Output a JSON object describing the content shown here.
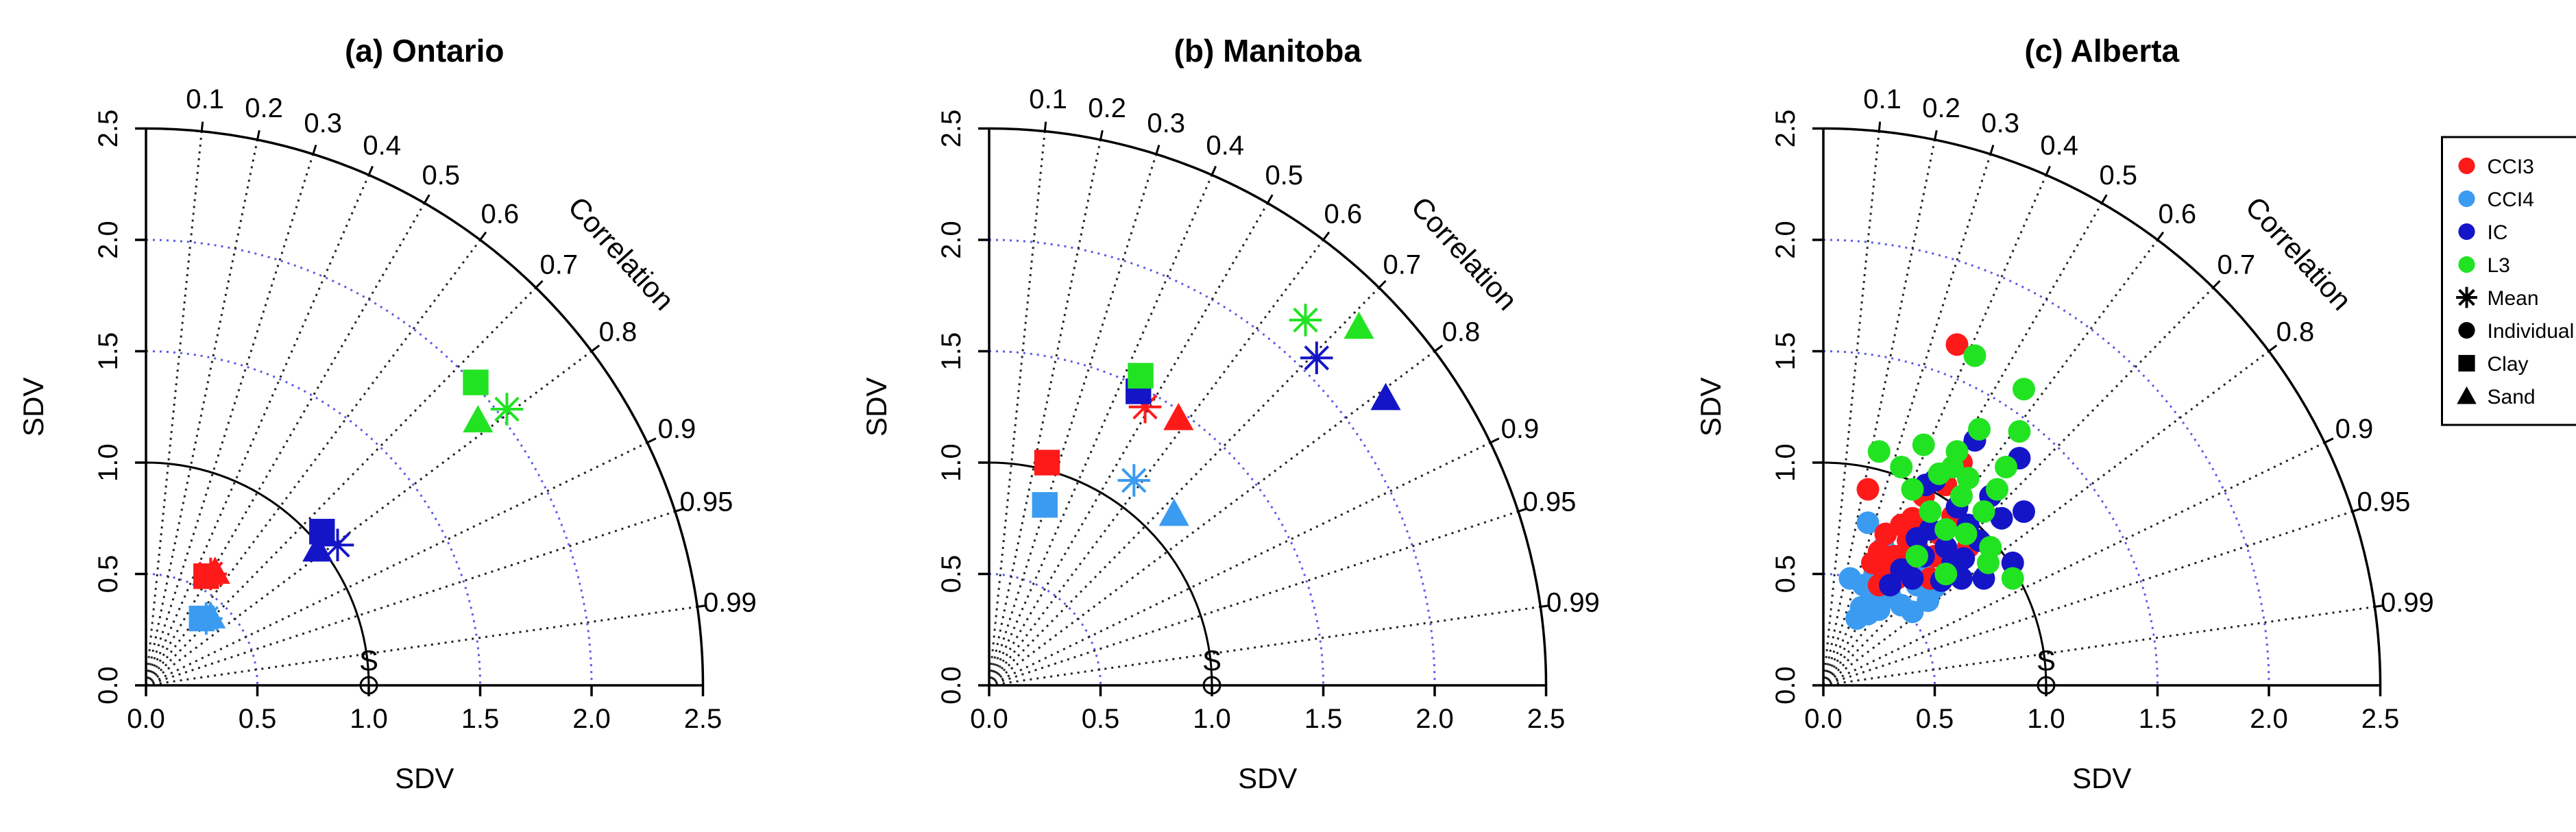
{
  "figure": {
    "background": "#ffffff",
    "colors": {
      "CCI3": "#ff1a1a",
      "CCI4": "#3b9bf0",
      "IC": "#1515c8",
      "L3": "#22e322",
      "grid_sd": "#5a5ae6",
      "grid_cor": "#222222"
    }
  },
  "chart_data": [
    {
      "type": "scatter",
      "subtype": "taylor-diagram",
      "title": "(a) Ontario",
      "xlabel": "SDV",
      "ylabel": "SDV",
      "correlation_label": "Correlation",
      "ref_label": "S",
      "sd_range": [
        0,
        2.5
      ],
      "sd_ticks": [
        "0.0",
        "0.5",
        "1.0",
        "1.5",
        "2.0",
        "2.5"
      ],
      "sd_tick_values": [
        0,
        0.5,
        1.0,
        1.5,
        2.0,
        2.5
      ],
      "cor_ticks": [
        "0.1",
        "0.2",
        "0.3",
        "0.4",
        "0.5",
        "0.6",
        "0.7",
        "0.8",
        "0.9",
        "0.95",
        "0.99"
      ],
      "cor_tick_values": [
        0.1,
        0.2,
        0.3,
        0.4,
        0.5,
        0.6,
        0.7,
        0.8,
        0.9,
        0.95,
        0.99
      ],
      "sd_grid": [
        0.5,
        1.5,
        2.0
      ],
      "ref_sd": 1.0,
      "series": [
        {
          "product": "CCI3",
          "marker": "square",
          "points": [
            {
              "x": 0.27,
              "y": 0.49
            }
          ]
        },
        {
          "product": "CCI3",
          "marker": "triangle",
          "points": [
            {
              "x": 0.31,
              "y": 0.51
            }
          ]
        },
        {
          "product": "CCI3",
          "marker": "asterisk",
          "points": [
            {
              "x": 0.29,
              "y": 0.5
            }
          ]
        },
        {
          "product": "CCI4",
          "marker": "square",
          "points": [
            {
              "x": 0.25,
              "y": 0.3
            }
          ]
        },
        {
          "product": "CCI4",
          "marker": "triangle",
          "points": [
            {
              "x": 0.29,
              "y": 0.31
            }
          ]
        },
        {
          "product": "CCI4",
          "marker": "asterisk",
          "points": [
            {
              "x": 0.27,
              "y": 0.3
            }
          ]
        },
        {
          "product": "IC",
          "marker": "square",
          "points": [
            {
              "x": 0.79,
              "y": 0.69
            }
          ]
        },
        {
          "product": "IC",
          "marker": "triangle",
          "points": [
            {
              "x": 0.77,
              "y": 0.61
            }
          ]
        },
        {
          "product": "IC",
          "marker": "asterisk",
          "points": [
            {
              "x": 0.86,
              "y": 0.63
            }
          ]
        },
        {
          "product": "L3",
          "marker": "square",
          "points": [
            {
              "x": 1.48,
              "y": 1.36
            }
          ]
        },
        {
          "product": "L3",
          "marker": "triangle",
          "points": [
            {
              "x": 1.49,
              "y": 1.19
            }
          ]
        },
        {
          "product": "L3",
          "marker": "asterisk",
          "points": [
            {
              "x": 1.62,
              "y": 1.24
            }
          ]
        }
      ]
    },
    {
      "type": "scatter",
      "subtype": "taylor-diagram",
      "title": "(b) Manitoba",
      "xlabel": "SDV",
      "ylabel": "SDV",
      "correlation_label": "Correlation",
      "ref_label": "S",
      "sd_range": [
        0,
        2.5
      ],
      "sd_ticks": [
        "0.0",
        "0.5",
        "1.0",
        "1.5",
        "2.0",
        "2.5"
      ],
      "sd_tick_values": [
        0,
        0.5,
        1.0,
        1.5,
        2.0,
        2.5
      ],
      "cor_ticks": [
        "0.1",
        "0.2",
        "0.3",
        "0.4",
        "0.5",
        "0.6",
        "0.7",
        "0.8",
        "0.9",
        "0.95",
        "0.99"
      ],
      "cor_tick_values": [
        0.1,
        0.2,
        0.3,
        0.4,
        0.5,
        0.6,
        0.7,
        0.8,
        0.9,
        0.95,
        0.99
      ],
      "sd_grid": [
        0.5,
        1.5,
        2.0
      ],
      "ref_sd": 1.0,
      "series": [
        {
          "product": "CCI3",
          "marker": "square",
          "points": [
            {
              "x": 0.26,
              "y": 1.0
            }
          ]
        },
        {
          "product": "CCI3",
          "marker": "triangle",
          "points": [
            {
              "x": 0.85,
              "y": 1.2
            }
          ]
        },
        {
          "product": "CCI3",
          "marker": "asterisk",
          "points": [
            {
              "x": 0.7,
              "y": 1.25
            }
          ]
        },
        {
          "product": "CCI4",
          "marker": "square",
          "points": [
            {
              "x": 0.25,
              "y": 0.81
            }
          ]
        },
        {
          "product": "CCI4",
          "marker": "triangle",
          "points": [
            {
              "x": 0.83,
              "y": 0.77
            }
          ]
        },
        {
          "product": "CCI4",
          "marker": "asterisk",
          "points": [
            {
              "x": 0.65,
              "y": 0.92
            }
          ]
        },
        {
          "product": "IC",
          "marker": "square",
          "points": [
            {
              "x": 0.67,
              "y": 1.32
            }
          ]
        },
        {
          "product": "IC",
          "marker": "triangle",
          "points": [
            {
              "x": 1.78,
              "y": 1.29
            }
          ]
        },
        {
          "product": "IC",
          "marker": "asterisk",
          "points": [
            {
              "x": 1.47,
              "y": 1.47
            }
          ]
        },
        {
          "product": "L3",
          "marker": "square",
          "points": [
            {
              "x": 0.68,
              "y": 1.39
            }
          ]
        },
        {
          "product": "L3",
          "marker": "triangle",
          "points": [
            {
              "x": 1.66,
              "y": 1.61
            }
          ]
        },
        {
          "product": "L3",
          "marker": "asterisk",
          "points": [
            {
              "x": 1.42,
              "y": 1.64
            }
          ]
        }
      ]
    },
    {
      "type": "scatter",
      "subtype": "taylor-diagram",
      "title": "(c) Alberta",
      "xlabel": "SDV",
      "ylabel": "SDV",
      "correlation_label": "Correlation",
      "ref_label": "S",
      "sd_range": [
        0,
        2.5
      ],
      "sd_ticks": [
        "0.0",
        "0.5",
        "1.0",
        "1.5",
        "2.0",
        "2.5"
      ],
      "sd_tick_values": [
        0,
        0.5,
        1.0,
        1.5,
        2.0,
        2.5
      ],
      "cor_ticks": [
        "0.1",
        "0.2",
        "0.3",
        "0.4",
        "0.5",
        "0.6",
        "0.7",
        "0.8",
        "0.9",
        "0.95",
        "0.99"
      ],
      "cor_tick_values": [
        0.1,
        0.2,
        0.3,
        0.4,
        0.5,
        0.6,
        0.7,
        0.8,
        0.9,
        0.95,
        0.99
      ],
      "sd_grid": [
        0.5,
        1.5,
        2.0
      ],
      "ref_sd": 1.0,
      "legend": {
        "placement": "top-right",
        "entries": [
          {
            "label": "CCI3",
            "marker": "circle",
            "product": "CCI3"
          },
          {
            "label": "CCI4",
            "marker": "circle",
            "product": "CCI4"
          },
          {
            "label": "IC",
            "marker": "circle",
            "product": "IC"
          },
          {
            "label": "L3",
            "marker": "circle",
            "product": "L3"
          },
          {
            "label": "Mean",
            "marker": "asterisk",
            "product": ""
          },
          {
            "label": "Individual",
            "marker": "circle",
            "product": ""
          },
          {
            "label": "Clay",
            "marker": "square",
            "product": ""
          },
          {
            "label": "Sand",
            "marker": "triangle",
            "product": ""
          }
        ]
      },
      "series": [
        {
          "product": "CCI4",
          "marker": "circle",
          "points": [
            {
              "x": 0.17,
              "y": 0.35
            },
            {
              "x": 0.2,
              "y": 0.32
            },
            {
              "x": 0.22,
              "y": 0.38
            },
            {
              "x": 0.25,
              "y": 0.34
            },
            {
              "x": 0.18,
              "y": 0.45
            },
            {
              "x": 0.23,
              "y": 0.5
            },
            {
              "x": 0.28,
              "y": 0.47
            },
            {
              "x": 0.3,
              "y": 0.4
            },
            {
              "x": 0.35,
              "y": 0.36
            },
            {
              "x": 0.4,
              "y": 0.33
            },
            {
              "x": 0.42,
              "y": 0.45
            },
            {
              "x": 0.33,
              "y": 0.55
            },
            {
              "x": 0.38,
              "y": 0.6
            },
            {
              "x": 0.45,
              "y": 0.52
            },
            {
              "x": 0.5,
              "y": 0.44
            },
            {
              "x": 0.12,
              "y": 0.48
            },
            {
              "x": 0.2,
              "y": 0.73
            },
            {
              "x": 0.27,
              "y": 0.62
            },
            {
              "x": 0.47,
              "y": 0.38
            },
            {
              "x": 0.15,
              "y": 0.3
            }
          ]
        },
        {
          "product": "CCI3",
          "marker": "circle",
          "points": [
            {
              "x": 0.2,
              "y": 0.88
            },
            {
              "x": 0.22,
              "y": 0.55
            },
            {
              "x": 0.25,
              "y": 0.6
            },
            {
              "x": 0.28,
              "y": 0.68
            },
            {
              "x": 0.3,
              "y": 0.5
            },
            {
              "x": 0.32,
              "y": 0.58
            },
            {
              "x": 0.35,
              "y": 0.72
            },
            {
              "x": 0.38,
              "y": 0.65
            },
            {
              "x": 0.4,
              "y": 0.75
            },
            {
              "x": 0.42,
              "y": 0.62
            },
            {
              "x": 0.45,
              "y": 0.85
            },
            {
              "x": 0.5,
              "y": 0.58
            },
            {
              "x": 0.52,
              "y": 0.68
            },
            {
              "x": 0.55,
              "y": 0.9
            },
            {
              "x": 0.58,
              "y": 0.76
            },
            {
              "x": 0.6,
              "y": 1.53
            },
            {
              "x": 0.62,
              "y": 1.0
            },
            {
              "x": 0.65,
              "y": 0.62
            },
            {
              "x": 0.48,
              "y": 0.48
            },
            {
              "x": 0.25,
              "y": 0.45
            },
            {
              "x": 0.33,
              "y": 0.48
            },
            {
              "x": 0.27,
              "y": 0.52
            },
            {
              "x": 0.38,
              "y": 0.55
            },
            {
              "x": 0.57,
              "y": 0.52
            }
          ]
        },
        {
          "product": "IC",
          "marker": "circle",
          "points": [
            {
              "x": 0.3,
              "y": 0.45
            },
            {
              "x": 0.35,
              "y": 0.52
            },
            {
              "x": 0.4,
              "y": 0.48
            },
            {
              "x": 0.45,
              "y": 0.58
            },
            {
              "x": 0.48,
              "y": 0.7
            },
            {
              "x": 0.5,
              "y": 0.92
            },
            {
              "x": 0.55,
              "y": 0.62
            },
            {
              "x": 0.58,
              "y": 0.55
            },
            {
              "x": 0.6,
              "y": 0.8
            },
            {
              "x": 0.62,
              "y": 0.48
            },
            {
              "x": 0.65,
              "y": 0.72
            },
            {
              "x": 0.68,
              "y": 1.1
            },
            {
              "x": 0.7,
              "y": 0.65
            },
            {
              "x": 0.72,
              "y": 0.48
            },
            {
              "x": 0.75,
              "y": 0.85
            },
            {
              "x": 0.8,
              "y": 0.75
            },
            {
              "x": 0.85,
              "y": 0.55
            },
            {
              "x": 0.9,
              "y": 0.78
            },
            {
              "x": 0.42,
              "y": 0.66
            },
            {
              "x": 0.53,
              "y": 0.47
            },
            {
              "x": 0.88,
              "y": 1.02
            },
            {
              "x": 0.46,
              "y": 0.9
            },
            {
              "x": 0.63,
              "y": 0.57
            }
          ]
        },
        {
          "product": "L3",
          "marker": "circle",
          "points": [
            {
              "x": 0.25,
              "y": 1.05
            },
            {
              "x": 0.35,
              "y": 0.98
            },
            {
              "x": 0.4,
              "y": 0.88
            },
            {
              "x": 0.45,
              "y": 1.08
            },
            {
              "x": 0.48,
              "y": 0.78
            },
            {
              "x": 0.52,
              "y": 0.95
            },
            {
              "x": 0.55,
              "y": 0.7
            },
            {
              "x": 0.58,
              "y": 0.98
            },
            {
              "x": 0.6,
              "y": 1.05
            },
            {
              "x": 0.62,
              "y": 0.85
            },
            {
              "x": 0.65,
              "y": 0.93
            },
            {
              "x": 0.68,
              "y": 1.48
            },
            {
              "x": 0.7,
              "y": 1.15
            },
            {
              "x": 0.72,
              "y": 0.78
            },
            {
              "x": 0.75,
              "y": 0.62
            },
            {
              "x": 0.78,
              "y": 0.88
            },
            {
              "x": 0.82,
              "y": 0.98
            },
            {
              "x": 0.85,
              "y": 0.48
            },
            {
              "x": 0.88,
              "y": 1.14
            },
            {
              "x": 0.9,
              "y": 1.33
            },
            {
              "x": 0.55,
              "y": 0.5
            },
            {
              "x": 0.42,
              "y": 0.58
            },
            {
              "x": 0.64,
              "y": 0.68
            },
            {
              "x": 0.74,
              "y": 0.55
            }
          ]
        }
      ]
    }
  ]
}
